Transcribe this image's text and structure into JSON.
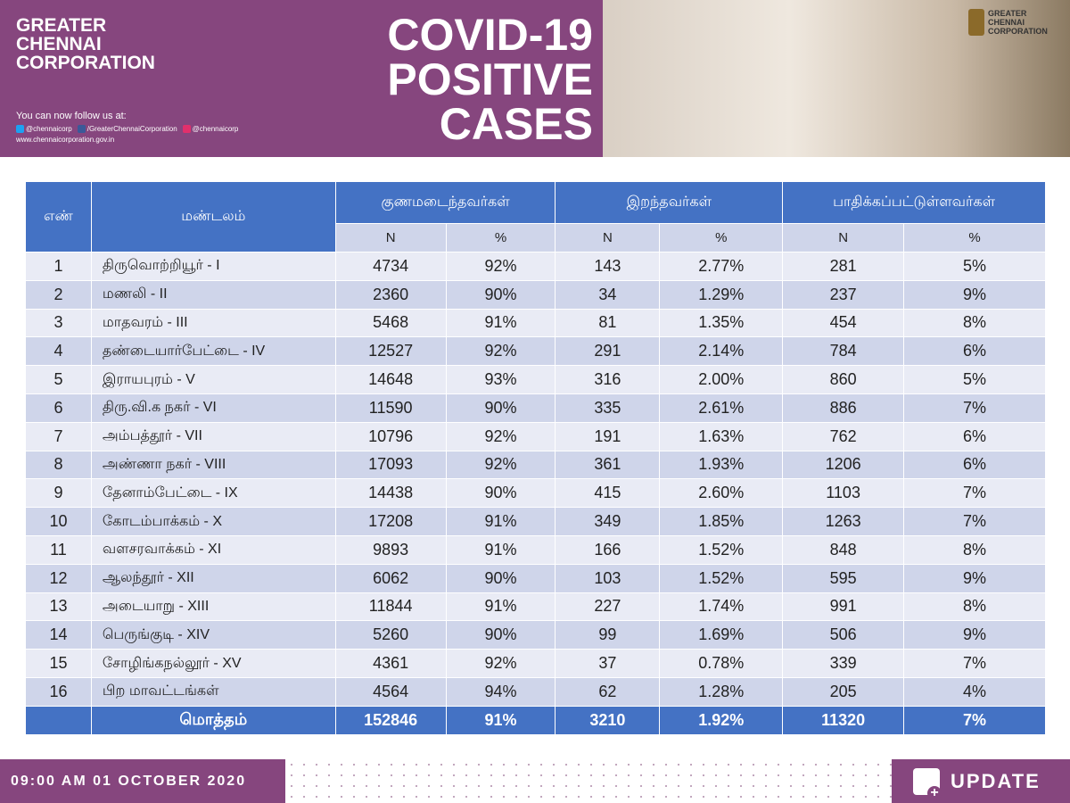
{
  "header": {
    "org": [
      "GREATER",
      "CHENNAI",
      "CORPORATION"
    ],
    "follow": "You can now follow us at:",
    "twitter": "@chennaicorp",
    "facebook": "/GreaterChennaiCorporation",
    "instagram": "@chennaicorp",
    "website": "www.chennaicorporation.gov.in",
    "title": [
      "COVID-19",
      "POSITIVE",
      "CASES"
    ],
    "logo_text": [
      "GREATER",
      "CHENNAI",
      "CORPORATION"
    ]
  },
  "table": {
    "h_no": "எண்",
    "h_zone": "மண்டலம்",
    "h_recovered": "குணமடைந்தவர்கள்",
    "h_deaths": "இறந்தவர்கள்",
    "h_active": "பாதிக்கப்பட்டுள்ளவர்கள்",
    "n": "N",
    "pct": "%",
    "rows": [
      [
        "1",
        "திருவொற்றியூர் - I",
        "4734",
        "92%",
        "143",
        "2.77%",
        "281",
        "5%"
      ],
      [
        "2",
        "மணலி - II",
        "2360",
        "90%",
        "34",
        "1.29%",
        "237",
        "9%"
      ],
      [
        "3",
        "மாதவரம் - III",
        "5468",
        "91%",
        "81",
        "1.35%",
        "454",
        "8%"
      ],
      [
        "4",
        "தண்டையார்பேட்டை - IV",
        "12527",
        "92%",
        "291",
        "2.14%",
        "784",
        "6%"
      ],
      [
        "5",
        "இராயபுரம் - V",
        "14648",
        "93%",
        "316",
        "2.00%",
        "860",
        "5%"
      ],
      [
        "6",
        "திரு.வி.க நகர் - VI",
        "11590",
        "90%",
        "335",
        "2.61%",
        "886",
        "7%"
      ],
      [
        "7",
        "அம்பத்தூர் - VII",
        "10796",
        "92%",
        "191",
        "1.63%",
        "762",
        "6%"
      ],
      [
        "8",
        "அண்ணா நகர் - VIII",
        "17093",
        "92%",
        "361",
        "1.93%",
        "1206",
        "6%"
      ],
      [
        "9",
        "தேனாம்பேட்டை - IX",
        "14438",
        "90%",
        "415",
        "2.60%",
        "1103",
        "7%"
      ],
      [
        "10",
        "கோடம்பாக்கம் - X",
        "17208",
        "91%",
        "349",
        "1.85%",
        "1263",
        "7%"
      ],
      [
        "11",
        "வளசரவாக்கம் - XI",
        "9893",
        "91%",
        "166",
        "1.52%",
        "848",
        "8%"
      ],
      [
        "12",
        "ஆலந்தூர் - XII",
        "6062",
        "90%",
        "103",
        "1.52%",
        "595",
        "9%"
      ],
      [
        "13",
        "அடையாறு - XIII",
        "11844",
        "91%",
        "227",
        "1.74%",
        "991",
        "8%"
      ],
      [
        "14",
        "பெருங்குடி - XIV",
        "5260",
        "90%",
        "99",
        "1.69%",
        "506",
        "9%"
      ],
      [
        "15",
        "சோழிங்கநல்லூர் - XV",
        "4361",
        "92%",
        "37",
        "0.78%",
        "339",
        "7%"
      ],
      [
        "16",
        "பிற மாவட்டங்கள்",
        "4564",
        "94%",
        "62",
        "1.28%",
        "205",
        "4%"
      ]
    ],
    "total": [
      "",
      "மொத்தம்",
      "152846",
      "91%",
      "3210",
      "1.92%",
      "11320",
      "7%"
    ]
  },
  "footer": {
    "datetime": "09:00 AM 01 OCTOBER 2020",
    "update": "UPDATE"
  },
  "colors": {
    "purple": "#86467e",
    "blue": "#4472c4",
    "row_light": "#e9ebf5",
    "row_dark": "#cfd5ea"
  }
}
